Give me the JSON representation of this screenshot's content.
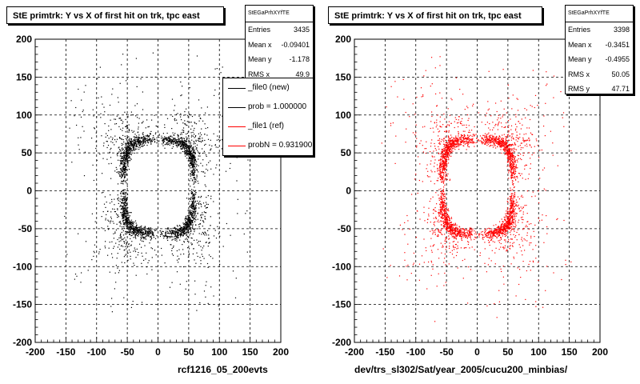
{
  "footer_text": "",
  "chart_data": [
    {
      "type": "scatter",
      "title": "StE primtrk: Y vs X of first hit on trk, tpc east",
      "xlabel": "rcf1216_05_200evts",
      "ylabel": "",
      "xlim": [
        -200,
        200
      ],
      "ylim": [
        -200,
        200
      ],
      "xticks": [
        "-200",
        "-150",
        "-100",
        "-50",
        "0",
        "50",
        "100",
        "150",
        "200"
      ],
      "yticks": [
        "-200",
        "-150",
        "-100",
        "-50",
        "0",
        "50",
        "100",
        "150",
        "200"
      ],
      "grid": true,
      "color": "#000000",
      "ring": {
        "x_center": 0,
        "y_center": 6,
        "x_radius": 57,
        "y_radius": 62
      },
      "stats": {
        "name": "StEGaPrhXYfTE",
        "rows": [
          {
            "key": "Entries",
            "value": "3435"
          },
          {
            "key": "Mean x",
            "value": "-0.09401"
          },
          {
            "key": "Mean y",
            "value": "-1.178"
          },
          {
            "key": "RMS x",
            "value": "49.9"
          }
        ]
      },
      "legend": {
        "position": "top-right",
        "entries": [
          {
            "label": "_file0 (new)",
            "color": "#000000"
          },
          {
            "label": "prob = 1.000000",
            "color": "#000000"
          },
          {
            "label": "_file1 (ref)",
            "color": "#ff0000"
          },
          {
            "label": "probN = 0.931900",
            "color": "#ff0000"
          }
        ]
      }
    },
    {
      "type": "scatter",
      "title": "StE primtrk: Y vs X of first hit on trk, tpc east",
      "xlabel": "dev/trs_sl302/Sat/year_2005/cucu200_minbias/",
      "ylabel": "",
      "xlim": [
        -200,
        200
      ],
      "ylim": [
        -200,
        200
      ],
      "xticks": [
        "-200",
        "-150",
        "-100",
        "-50",
        "0",
        "50",
        "100",
        "150",
        "200"
      ],
      "yticks": [
        "-200",
        "-150",
        "-100",
        "-50",
        "0",
        "50",
        "100",
        "150",
        "200"
      ],
      "grid": true,
      "color": "#ff0000",
      "ring": {
        "x_center": 0,
        "y_center": 6,
        "x_radius": 57,
        "y_radius": 62
      },
      "stats": {
        "name": "StEGaPrhXYfTE",
        "rows": [
          {
            "key": "Entries",
            "value": "3398"
          },
          {
            "key": "Mean x",
            "value": "-0.3451"
          },
          {
            "key": "Mean y",
            "value": "-0.4955"
          },
          {
            "key": "RMS x",
            "value": "50.05"
          },
          {
            "key": "RMS y",
            "value": "47.71"
          }
        ]
      }
    }
  ]
}
